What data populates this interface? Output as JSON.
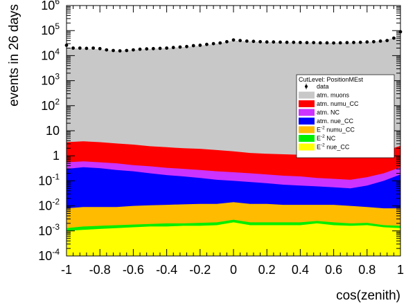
{
  "chart_data": {
    "type": "area",
    "xlabel": "cos(zenith)",
    "ylabel": "events in 26 days",
    "xlim": [
      -1,
      1
    ],
    "ylim": [
      0.0001,
      1000000
    ],
    "yscale": "log",
    "grid": false,
    "x_ticks": [
      -1,
      -0.8,
      -0.6,
      -0.4,
      -0.2,
      0,
      0.2,
      0.4,
      0.6,
      0.8,
      1
    ],
    "x_tick_labels": [
      "-1",
      "-0.8",
      "-0.6",
      "-0.4",
      "-0.2",
      "0",
      "0.2",
      "0.4",
      "0.6",
      "0.8",
      "1"
    ],
    "y_ticks": [
      0.0001,
      0.001,
      0.01,
      0.1,
      1,
      10,
      100,
      1000,
      10000,
      100000,
      1000000
    ],
    "y_tick_labels": [
      {
        "base": "10",
        "exp": "-4"
      },
      {
        "base": "10",
        "exp": "-3"
      },
      {
        "base": "10",
        "exp": "-2"
      },
      {
        "base": "10",
        "exp": "-1"
      },
      {
        "base": "1",
        "exp": ""
      },
      {
        "base": "10",
        "exp": ""
      },
      {
        "base": "10",
        "exp": "2"
      },
      {
        "base": "10",
        "exp": "3"
      },
      {
        "base": "10",
        "exp": "4"
      },
      {
        "base": "10",
        "exp": "5"
      },
      {
        "base": "10",
        "exp": "6"
      }
    ],
    "legend_placement": "top-right",
    "legend": {
      "title": "CutLevel: PositionMEst",
      "entries": [
        {
          "label": "data",
          "sup": "",
          "rest": "",
          "kind": "marker",
          "color": "#000000"
        },
        {
          "label": "atm. muons",
          "sup": "",
          "rest": "",
          "kind": "fill",
          "color": "#c8c8c8"
        },
        {
          "label": "atm. numu_CC",
          "sup": "",
          "rest": "",
          "kind": "fill",
          "color": "#ff0000"
        },
        {
          "label": "atm. NC",
          "sup": "",
          "rest": "",
          "kind": "fill",
          "color": "#cc33ff"
        },
        {
          "label": "atm. nue_CC",
          "sup": "",
          "rest": "",
          "kind": "fill",
          "color": "#0000ff"
        },
        {
          "label": "E",
          "sup": "-2",
          "rest": " numu_CC",
          "kind": "fill",
          "color": "#ffbb00"
        },
        {
          "label": "E",
          "sup": "-2",
          "rest": " NC",
          "kind": "fill",
          "color": "#00ee00"
        },
        {
          "label": "E",
          "sup": "-2",
          "rest": " nue_CC",
          "kind": "fill",
          "color": "#ffff00"
        }
      ]
    },
    "data_series": {
      "name": "data",
      "x": [
        -1.0,
        -0.96,
        -0.92,
        -0.88,
        -0.84,
        -0.8,
        -0.76,
        -0.72,
        -0.68,
        -0.64,
        -0.6,
        -0.56,
        -0.52,
        -0.48,
        -0.44,
        -0.4,
        -0.36,
        -0.32,
        -0.28,
        -0.24,
        -0.2,
        -0.16,
        -0.12,
        -0.08,
        -0.04,
        0.0,
        0.04,
        0.08,
        0.12,
        0.16,
        0.2,
        0.24,
        0.28,
        0.32,
        0.36,
        0.4,
        0.44,
        0.48,
        0.52,
        0.56,
        0.6,
        0.64,
        0.68,
        0.72,
        0.76,
        0.8,
        0.84,
        0.88,
        0.92,
        0.96,
        1.0
      ],
      "y": [
        26000,
        20000,
        20000,
        19500,
        20000,
        19000,
        17000,
        16000,
        15500,
        16000,
        17000,
        18000,
        18500,
        19000,
        19500,
        20000,
        21000,
        22000,
        23000,
        25000,
        26000,
        28000,
        30000,
        32000,
        36000,
        42000,
        40000,
        38000,
        37000,
        36000,
        35000,
        35000,
        34500,
        34000,
        34000,
        33500,
        33000,
        33000,
        32500,
        32500,
        32000,
        32500,
        33000,
        33500,
        34000,
        35000,
        36000,
        38000,
        40000,
        50000,
        90000
      ]
    },
    "stack": {
      "x": [
        -1.0,
        -0.9,
        -0.8,
        -0.7,
        -0.6,
        -0.5,
        -0.4,
        -0.3,
        -0.2,
        -0.1,
        0.0,
        0.1,
        0.2,
        0.3,
        0.4,
        0.5,
        0.6,
        0.7,
        0.8,
        0.9,
        1.0
      ],
      "layers": [
        {
          "name": "atm. muons",
          "color": "#c8c8c8",
          "top": [
            20000,
            19000,
            18000,
            15500,
            17000,
            18500,
            20000,
            22000,
            25000,
            30000,
            40000,
            37000,
            35000,
            34000,
            33500,
            33000,
            32500,
            33000,
            35000,
            40000,
            60000
          ]
        },
        {
          "name": "atm. numu_CC",
          "color": "#ff0000",
          "top": [
            3.5,
            3.8,
            3.5,
            3.1,
            2.8,
            2.4,
            2.2,
            2.0,
            1.9,
            1.7,
            1.5,
            1.3,
            1.2,
            1.15,
            1.1,
            1.0,
            0.95,
            0.9,
            1.1,
            1.5,
            2.5
          ]
        },
        {
          "name": "atm. NC",
          "color": "#cc33ff",
          "top": [
            0.55,
            0.6,
            0.55,
            0.5,
            0.42,
            0.38,
            0.33,
            0.3,
            0.27,
            0.24,
            0.22,
            0.2,
            0.18,
            0.16,
            0.15,
            0.13,
            0.12,
            0.11,
            0.14,
            0.2,
            0.35
          ]
        },
        {
          "name": "atm. nue_CC",
          "color": "#0000ff",
          "top": [
            0.3,
            0.35,
            0.32,
            0.27,
            0.24,
            0.2,
            0.17,
            0.15,
            0.13,
            0.11,
            0.1,
            0.09,
            0.08,
            0.07,
            0.065,
            0.06,
            0.055,
            0.05,
            0.065,
            0.1,
            0.18
          ]
        },
        {
          "name": "E-2 numu_CC",
          "color": "#ffbb00",
          "top": [
            0.008,
            0.009,
            0.009,
            0.009,
            0.01,
            0.0105,
            0.011,
            0.0115,
            0.012,
            0.012,
            0.014,
            0.012,
            0.012,
            0.011,
            0.011,
            0.011,
            0.011,
            0.01,
            0.009,
            0.008,
            0.008
          ]
        },
        {
          "name": "E-2 NC",
          "color": "#00ee00",
          "top": [
            0.0013,
            0.0015,
            0.0016,
            0.0017,
            0.0018,
            0.0019,
            0.002,
            0.002,
            0.0021,
            0.0022,
            0.0028,
            0.0022,
            0.0022,
            0.0022,
            0.0022,
            0.0025,
            0.0022,
            0.002,
            0.0021,
            0.0017,
            0.0016
          ]
        },
        {
          "name": "E-2 nue_CC",
          "color": "#ffff00",
          "top": [
            0.001,
            0.0011,
            0.0012,
            0.0013,
            0.0014,
            0.0015,
            0.0015,
            0.0016,
            0.0016,
            0.0017,
            0.0022,
            0.0017,
            0.0017,
            0.0017,
            0.0017,
            0.002,
            0.0017,
            0.0016,
            0.0017,
            0.0014,
            0.0013
          ]
        }
      ]
    }
  }
}
